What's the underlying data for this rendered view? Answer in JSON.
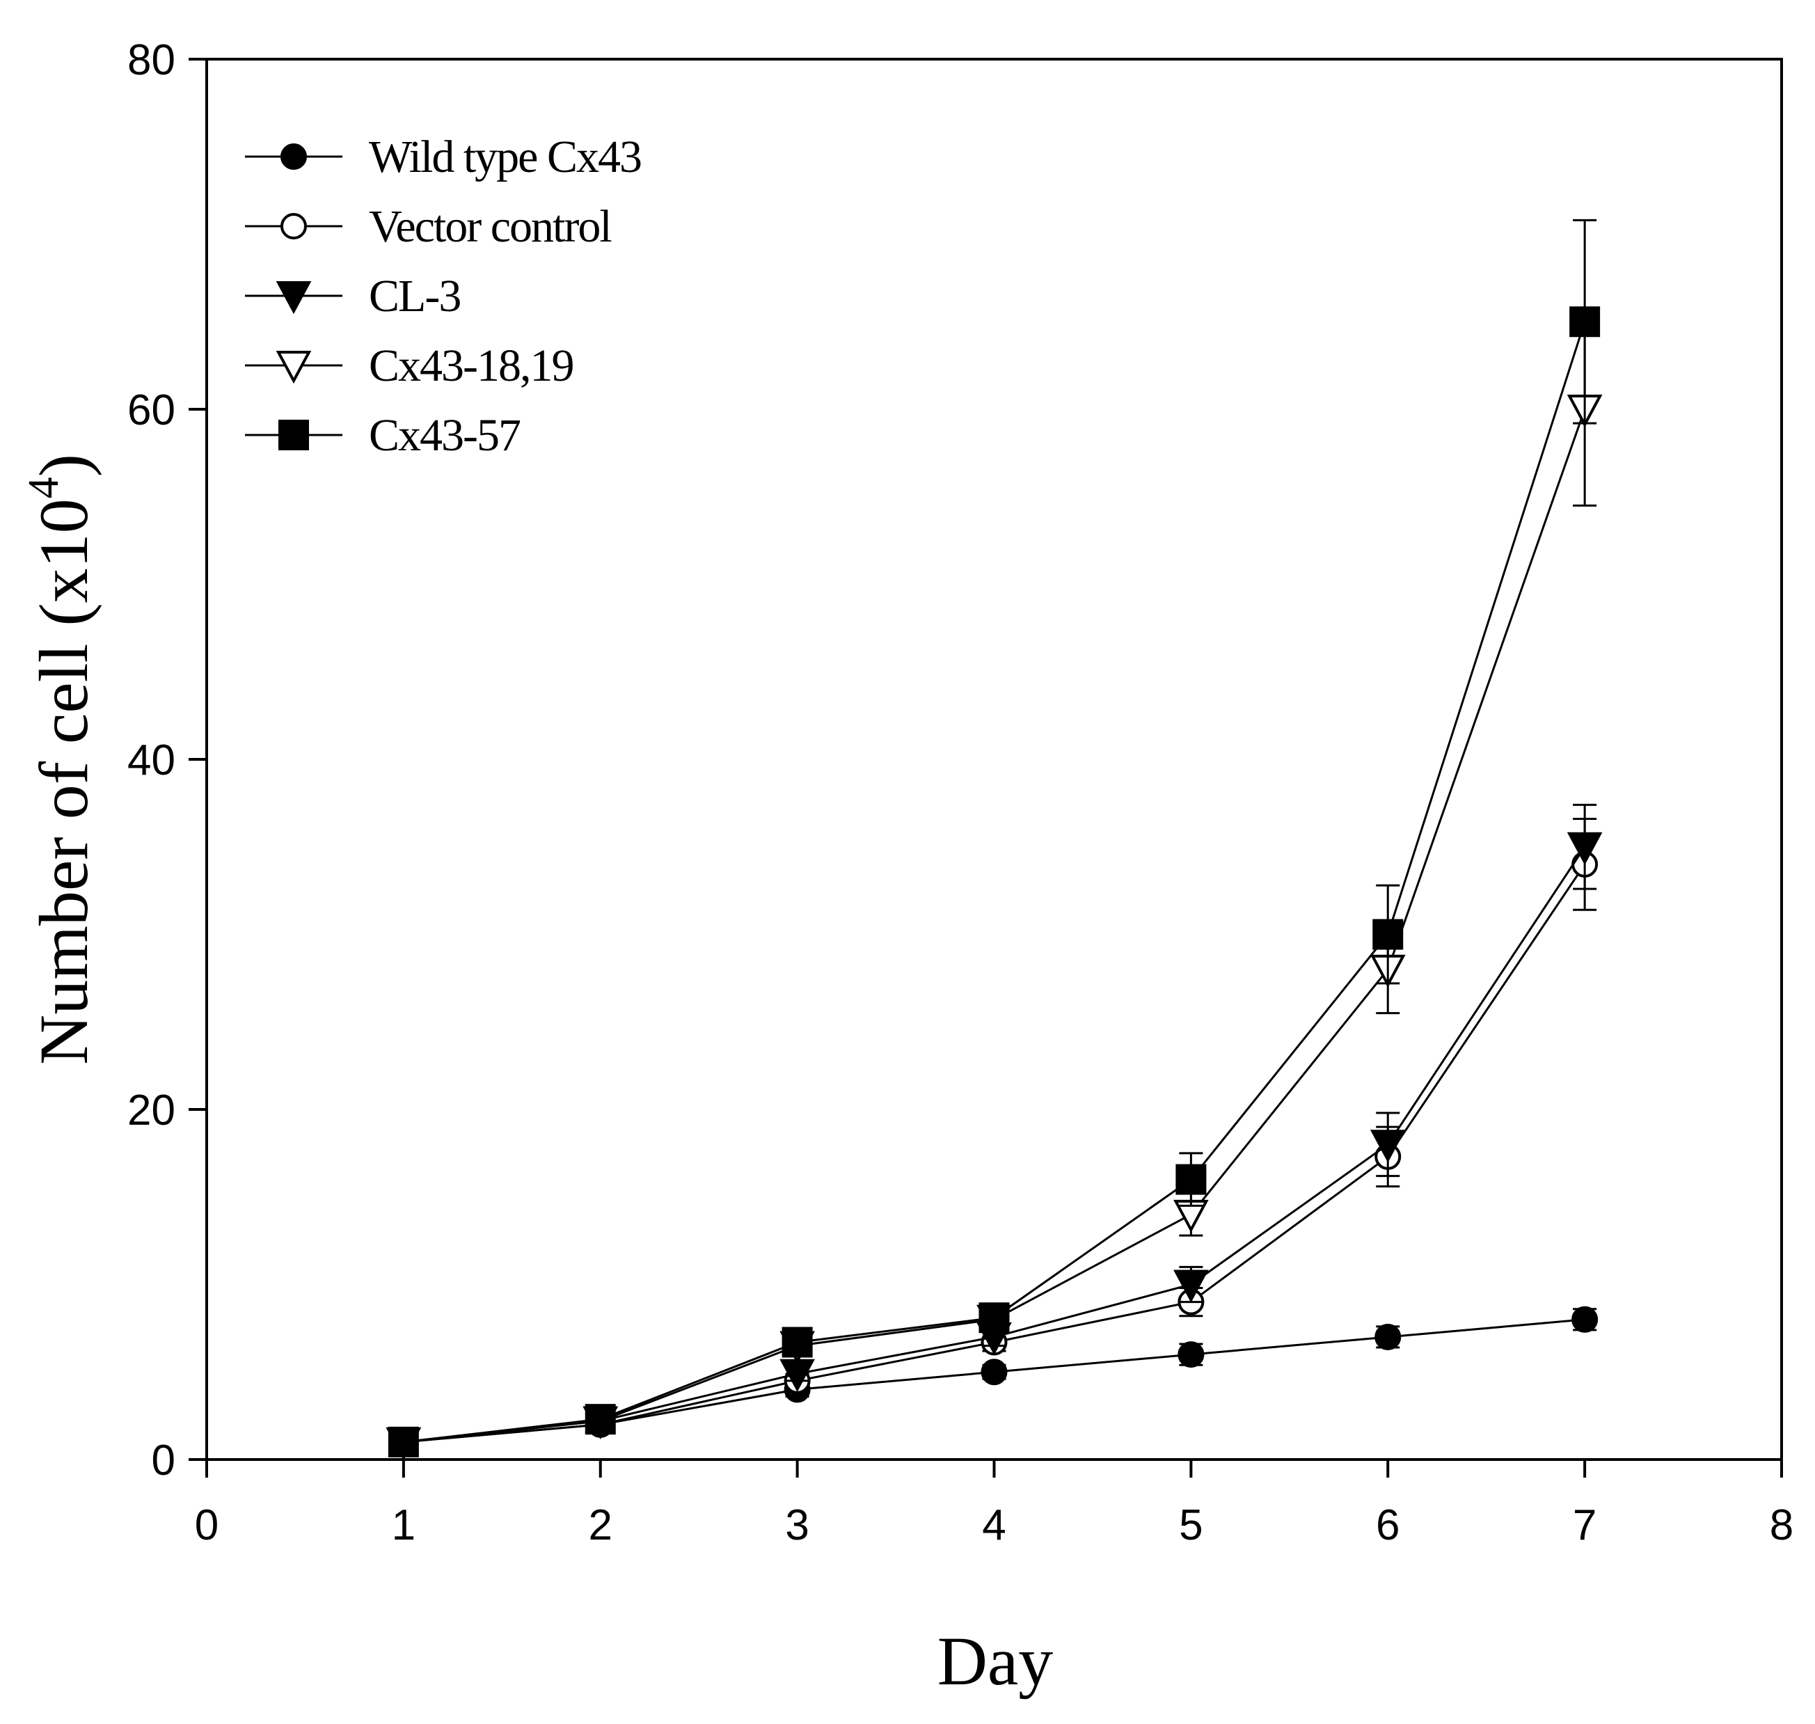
{
  "chart_data": {
    "type": "line",
    "title": "",
    "xlabel": "Day",
    "ylabel": {
      "main": "Number of cell (x10",
      "sup": "4",
      "close": ")"
    },
    "xlim": [
      0,
      8
    ],
    "ylim": [
      0,
      80
    ],
    "xticks": [
      0,
      1,
      2,
      3,
      4,
      5,
      6,
      7,
      8
    ],
    "yticks": [
      0,
      20,
      40,
      60,
      80
    ],
    "grid": false,
    "legend_position": "top-left",
    "x": [
      1,
      2,
      3,
      4,
      5,
      6,
      7
    ],
    "series": [
      {
        "name": "Wild type Cx43",
        "marker": "filled-circle",
        "values": [
          1.0,
          2.0,
          4.0,
          5.0,
          6.0,
          7.0,
          8.0
        ],
        "errors": [
          0.3,
          0.3,
          0.4,
          0.4,
          0.6,
          0.6,
          0.6
        ]
      },
      {
        "name": "Vector control",
        "marker": "open-circle",
        "values": [
          1.0,
          2.0,
          4.5,
          6.7,
          9.0,
          17.3,
          34.0
        ],
        "errors": [
          0.3,
          0.3,
          0.4,
          0.5,
          0.8,
          1.7,
          2.6
        ]
      },
      {
        "name": "CL-3",
        "marker": "filled-triangle-down",
        "values": [
          1.0,
          2.2,
          4.9,
          7.0,
          10.0,
          18.0,
          35.0
        ],
        "errors": [
          0.3,
          0.3,
          0.4,
          0.5,
          1.0,
          1.8,
          2.4
        ]
      },
      {
        "name": "Cx43-18,19",
        "marker": "open-triangle-down",
        "values": [
          1.0,
          2.2,
          6.5,
          8.0,
          14.0,
          28.0,
          60.0
        ],
        "errors": [
          0.3,
          0.3,
          0.4,
          0.5,
          1.2,
          2.5,
          5.5
        ]
      },
      {
        "name": "Cx43-57",
        "marker": "filled-square",
        "values": [
          1.0,
          2.3,
          6.7,
          8.1,
          16.0,
          30.0,
          65.0
        ],
        "errors": [
          0.3,
          0.3,
          0.4,
          0.5,
          1.5,
          2.8,
          5.8
        ]
      }
    ]
  }
}
